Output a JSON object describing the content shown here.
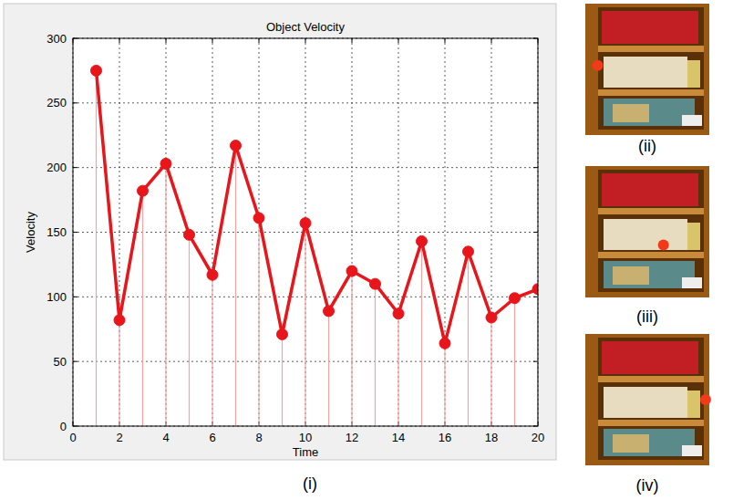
{
  "chart_data": {
    "type": "line",
    "title": "Object Velocity",
    "x_label": "Time",
    "y_label": "Velocity",
    "x": [
      1,
      2,
      3,
      4,
      5,
      6,
      7,
      8,
      9,
      10,
      11,
      12,
      13,
      14,
      15,
      16,
      17,
      18,
      19,
      20
    ],
    "values": [
      275,
      82,
      182,
      203,
      148,
      117,
      217,
      161,
      71,
      157,
      89,
      120,
      110,
      87,
      143,
      64,
      135,
      84,
      99,
      106
    ],
    "color": "#e8161b",
    "marker": "circle",
    "line_style": "solid",
    "xlim": [
      0,
      20
    ],
    "xticks": [
      0,
      2,
      4,
      6,
      8,
      10,
      12,
      14,
      16,
      18,
      20
    ],
    "ylim": [
      0,
      300
    ],
    "yticks": [
      0,
      50,
      100,
      150,
      200,
      250,
      300
    ],
    "grid": true
  },
  "panel_labels": [
    "(i)",
    "(ii)",
    "(iii)",
    "(iv)"
  ]
}
